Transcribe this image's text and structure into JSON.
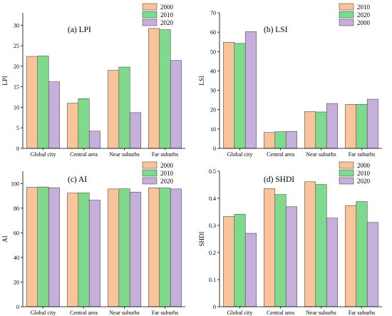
{
  "chart_data": [
    {
      "type": "bar",
      "title": "(a) LPI",
      "xlabel": "",
      "ylabel": "LPI",
      "ylim": [
        0,
        33
      ],
      "yticks": [
        0,
        5,
        10,
        15,
        20,
        25,
        30
      ],
      "categories": [
        "Global city",
        "Central area",
        "Near suburbs",
        "Far suburbs"
      ],
      "legend_position": "top-right",
      "series": [
        {
          "name": "2000",
          "color": "#F9C499",
          "values": [
            22.4,
            11.0,
            19.0,
            29.2
          ]
        },
        {
          "name": "2010",
          "color": "#7FDA8E",
          "values": [
            22.5,
            12.1,
            19.8,
            28.9
          ]
        },
        {
          "name": "2020",
          "color": "#C6B0DB",
          "values": [
            16.2,
            4.2,
            8.7,
            21.4
          ]
        }
      ]
    },
    {
      "type": "bar",
      "title": "(b) LSI",
      "xlabel": "",
      "ylabel": "LSI",
      "ylim": [
        0,
        70
      ],
      "yticks": [
        0,
        10,
        20,
        30,
        40,
        50,
        60,
        70
      ],
      "categories": [
        "Global city",
        "Central area",
        "Near suburbs",
        "Far suburbs"
      ],
      "legend_position": "top-right",
      "series": [
        {
          "name": "2010",
          "color": "#F9C499",
          "values": [
            54.8,
            8.2,
            19.0,
            22.7
          ]
        },
        {
          "name": "2020",
          "color": "#7FDA8E",
          "values": [
            54.2,
            8.6,
            18.8,
            22.7
          ]
        },
        {
          "name": "2000",
          "color": "#C6B0DB",
          "values": [
            60.3,
            8.8,
            23.2,
            25.4
          ]
        }
      ]
    },
    {
      "type": "bar",
      "title": "(c) AI",
      "xlabel": "",
      "ylabel": "AI",
      "ylim": [
        0,
        110
      ],
      "yticks": [
        0,
        20,
        40,
        60,
        80,
        100
      ],
      "categories": [
        "Global city",
        "Central area",
        "Near suburbs",
        "Far suburbs"
      ],
      "legend_position": "top-right",
      "series": [
        {
          "name": "2000",
          "color": "#F9C499",
          "values": [
            97.0,
            92.3,
            95.6,
            96.5
          ]
        },
        {
          "name": "2010",
          "color": "#7FDA8E",
          "values": [
            97.2,
            92.4,
            95.7,
            96.4
          ]
        },
        {
          "name": "2020",
          "color": "#C6B0DB",
          "values": [
            96.6,
            86.5,
            93.1,
            95.6
          ]
        }
      ]
    },
    {
      "type": "bar",
      "title": "(d) SHDI",
      "xlabel": "",
      "ylabel": "SHDI",
      "ylim": [
        0,
        0.5
      ],
      "yticks": [
        0,
        0.1,
        0.2,
        0.3,
        0.4,
        0.5
      ],
      "categories": [
        "Global city",
        "Central area",
        "Near suburbs",
        "Far suburbs"
      ],
      "legend_position": "top-right",
      "series": [
        {
          "name": "2000",
          "color": "#F9C499",
          "values": [
            0.333,
            0.436,
            0.461,
            0.373
          ]
        },
        {
          "name": "2010",
          "color": "#7FDA8E",
          "values": [
            0.341,
            0.414,
            0.451,
            0.388
          ]
        },
        {
          "name": "2020",
          "color": "#C6B0DB",
          "values": [
            0.271,
            0.369,
            0.327,
            0.311
          ]
        }
      ]
    }
  ]
}
